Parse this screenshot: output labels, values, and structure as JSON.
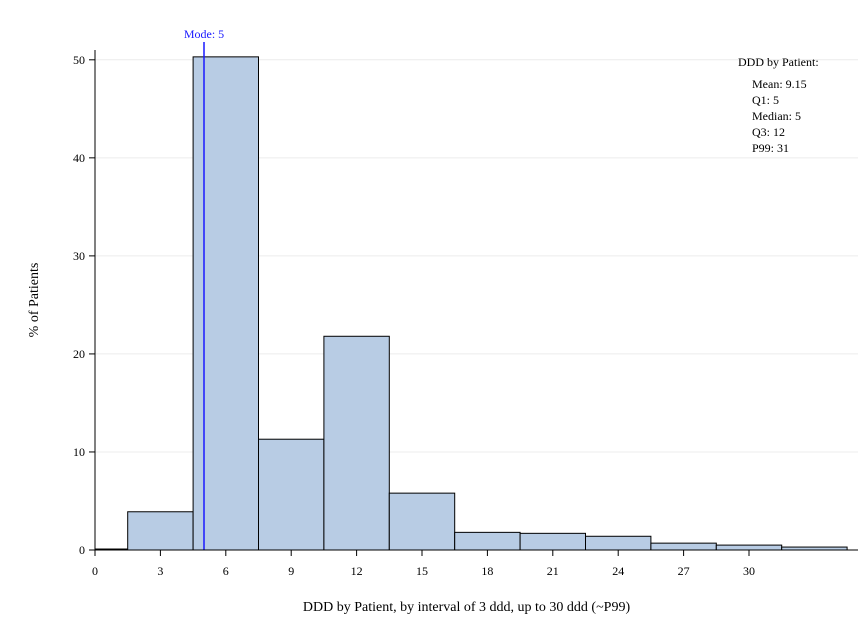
{
  "chart_data": {
    "type": "bar",
    "subtype": "histogram",
    "xlabel": "DDD by Patient, by interval of 3 ddd, up to 30 ddd (~P99)",
    "ylabel": "% of Patients",
    "xlim": [
      0,
      35
    ],
    "ylim": [
      0,
      51
    ],
    "x_ticks": [
      0,
      3,
      6,
      9,
      12,
      15,
      18,
      21,
      24,
      27,
      30
    ],
    "y_ticks": [
      0,
      10,
      20,
      30,
      40,
      50
    ],
    "bin_width": 3,
    "bins": [
      {
        "center": 0,
        "value": 0.1
      },
      {
        "center": 3,
        "value": 3.9
      },
      {
        "center": 6,
        "value": 50.3
      },
      {
        "center": 9,
        "value": 11.3
      },
      {
        "center": 12,
        "value": 21.8
      },
      {
        "center": 15,
        "value": 5.8
      },
      {
        "center": 18,
        "value": 1.8
      },
      {
        "center": 21,
        "value": 1.7
      },
      {
        "center": 24,
        "value": 1.4
      },
      {
        "center": 27,
        "value": 0.7
      },
      {
        "center": 30,
        "value": 0.5
      },
      {
        "center": 33,
        "value": 0.3
      }
    ],
    "bar_color": "#b8cce4",
    "mode_line": {
      "x": 5,
      "label": "Mode: 5",
      "color": "#1a1aff"
    },
    "grid": "horizontal",
    "stats_box": {
      "title": "DDD by Patient:",
      "lines": [
        "Mean: 9.15",
        "Q1: 5",
        "Median: 5",
        "Q3: 12",
        "P99: 31"
      ],
      "placement": "top-right"
    }
  }
}
